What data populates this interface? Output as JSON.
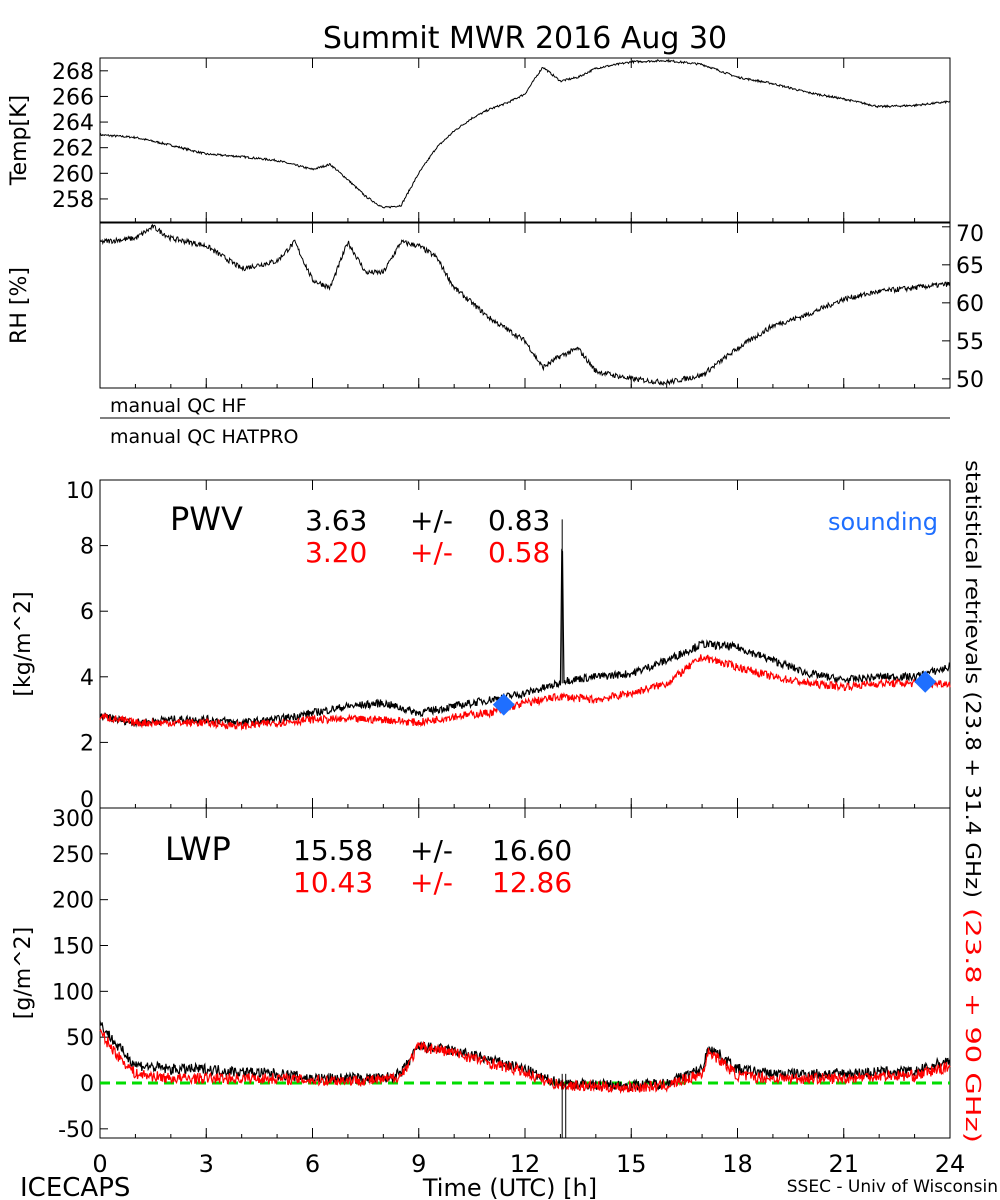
{
  "chart_data": [
    {
      "type": "line",
      "title": "Summit MWR 2016 Aug 30",
      "ylabel": "Temp[K]",
      "ylim": [
        256.2,
        269.0
      ],
      "yticks": [
        258,
        260,
        262,
        264,
        266,
        268
      ],
      "series": [
        {
          "name": "Temp",
          "color": "#000000",
          "x": [
            0,
            1,
            2,
            3,
            4,
            5,
            6,
            6.5,
            7,
            7.5,
            8,
            8.5,
            9,
            9.5,
            10,
            10.5,
            11,
            11.5,
            12,
            12.5,
            13,
            13.5,
            14,
            15,
            16,
            17,
            18,
            19,
            20,
            21,
            22,
            23,
            24
          ],
          "y": [
            263,
            262.8,
            262.2,
            261.5,
            261.3,
            261,
            260.3,
            260.7,
            259.5,
            258.2,
            257.3,
            257.5,
            260,
            262,
            263.3,
            264.3,
            265,
            265.5,
            266.2,
            268.3,
            267.2,
            267.5,
            268.2,
            268.7,
            268.8,
            268.5,
            267.5,
            267,
            266.3,
            265.8,
            265.2,
            265.3,
            265.6
          ]
        }
      ]
    },
    {
      "type": "line",
      "ylabel": "RH [%]",
      "ylim": [
        48.8,
        70.5
      ],
      "yticks": [
        50,
        55,
        60,
        65,
        70
      ],
      "series": [
        {
          "name": "RH",
          "color": "#000000",
          "x": [
            0,
            1,
            1.5,
            2,
            3,
            4,
            5,
            5.5,
            6,
            6.5,
            7,
            7.5,
            8,
            8.5,
            9,
            9.5,
            10,
            10.5,
            11,
            12,
            12.5,
            13,
            13.5,
            14,
            15,
            16,
            17,
            18,
            19,
            20,
            21,
            22,
            23,
            24
          ],
          "y": [
            68,
            68.5,
            70,
            68.5,
            67.5,
            64.5,
            65.5,
            68,
            63,
            62,
            68,
            64,
            64,
            68,
            67.5,
            66,
            62,
            60,
            58,
            55,
            51.5,
            53,
            54,
            51,
            50,
            49.5,
            50.5,
            54,
            57,
            58.5,
            60.5,
            61.5,
            62,
            62.5
          ]
        }
      ]
    },
    {
      "type": "line",
      "label": "PWV",
      "ylabel": "[kg/m^2]",
      "ylim": [
        0,
        10
      ],
      "yticks": [
        0,
        2,
        4,
        6,
        8,
        10
      ],
      "stats": [
        {
          "mean": "3.63",
          "pm": "+/-",
          "sd": "0.83",
          "color": "#000000"
        },
        {
          "mean": "3.20",
          "pm": "+/-",
          "sd": "0.58",
          "color": "#ff0000"
        }
      ],
      "legend": "sounding",
      "right_label": "statistical retrievals (23.8 + 31.4 GHz)",
      "series": [
        {
          "name": "23.8 + 31.4 GHz",
          "color": "#000000",
          "x": [
            0,
            1,
            2,
            3,
            4,
            5,
            6,
            7,
            8,
            9,
            10,
            11,
            12,
            13,
            13.05,
            13.1,
            13.2,
            14,
            15,
            16,
            17,
            18,
            19,
            20,
            21,
            22,
            23,
            24
          ],
          "y": [
            2.8,
            2.6,
            2.7,
            2.7,
            2.6,
            2.7,
            2.9,
            3.1,
            3.2,
            2.9,
            3.1,
            3.3,
            3.5,
            3.8,
            8.8,
            3.9,
            3.9,
            4.0,
            4.1,
            4.5,
            5.0,
            4.9,
            4.5,
            4.1,
            3.9,
            4.0,
            4.0,
            4.3
          ]
        },
        {
          "name": "23.8 + 90 GHz",
          "color": "#ff0000",
          "x": [
            0,
            1,
            2,
            3,
            4,
            5,
            6,
            7,
            8,
            9,
            10,
            11,
            12,
            13,
            14,
            15,
            16,
            17,
            18,
            19,
            20,
            21,
            22,
            23,
            24
          ],
          "y": [
            2.8,
            2.6,
            2.6,
            2.6,
            2.5,
            2.6,
            2.7,
            2.7,
            2.7,
            2.6,
            2.8,
            2.9,
            3.2,
            3.4,
            3.3,
            3.5,
            3.8,
            4.6,
            4.3,
            4.0,
            3.8,
            3.7,
            3.8,
            3.8,
            3.8
          ]
        },
        {
          "name": "sounding",
          "color": "#1f6fff",
          "marker": "diamond",
          "x": [
            11.4,
            23.3
          ],
          "y": [
            3.15,
            3.85
          ]
        }
      ]
    },
    {
      "type": "line",
      "label": "LWP",
      "ylabel": "[g/m^2]",
      "ylim": [
        -60,
        300
      ],
      "yticks": [
        -50,
        0,
        50,
        100,
        150,
        200,
        250,
        300
      ],
      "stats": [
        {
          "mean": "15.58",
          "pm": "+/-",
          "sd": "16.60",
          "color": "#000000"
        },
        {
          "mean": "10.43",
          "pm": "+/-",
          "sd": "12.86",
          "color": "#ff0000"
        }
      ],
      "right_label": "(23.8 + 90 GHz)",
      "zero_line_color": "#00dd00",
      "xlabel": "Time (UTC) [h]",
      "xlim": [
        0,
        24
      ],
      "xticks": [
        0,
        3,
        6,
        9,
        12,
        15,
        18,
        21,
        24
      ],
      "series": [
        {
          "name": "23.8 + 31.4 GHz",
          "color": "#000000",
          "x": [
            0,
            0.5,
            1,
            2,
            3,
            4,
            5,
            6,
            7,
            8,
            8.5,
            9,
            10,
            11,
            12,
            12.5,
            13,
            14,
            15,
            16,
            17,
            17.2,
            18,
            19,
            20,
            21,
            22,
            23,
            24
          ],
          "y": [
            65,
            40,
            20,
            15,
            15,
            12,
            10,
            5,
            5,
            5,
            10,
            40,
            35,
            25,
            15,
            5,
            0,
            -2,
            -3,
            0,
            15,
            40,
            15,
            10,
            10,
            10,
            12,
            12,
            25
          ]
        },
        {
          "name": "23.8 + 90 GHz",
          "color": "#ff0000",
          "x": [
            0,
            0.5,
            1,
            2,
            3,
            4,
            5,
            6,
            7,
            8,
            8.5,
            9,
            10,
            11,
            12,
            12.5,
            13,
            14,
            15,
            16,
            17,
            17.2,
            18,
            19,
            20,
            21,
            22,
            23,
            24
          ],
          "y": [
            55,
            30,
            10,
            5,
            5,
            5,
            5,
            3,
            3,
            3,
            8,
            40,
            33,
            22,
            12,
            3,
            -2,
            -4,
            -5,
            -3,
            10,
            35,
            8,
            5,
            5,
            5,
            8,
            8,
            18
          ]
        }
      ]
    }
  ],
  "qc": {
    "hf": "manual QC HF",
    "hatpro": "manual QC HATPRO"
  },
  "footer": {
    "left": "ICECAPS",
    "center": "Time (UTC) [h]",
    "right": "SSEC - Univ of Wisconsin"
  }
}
